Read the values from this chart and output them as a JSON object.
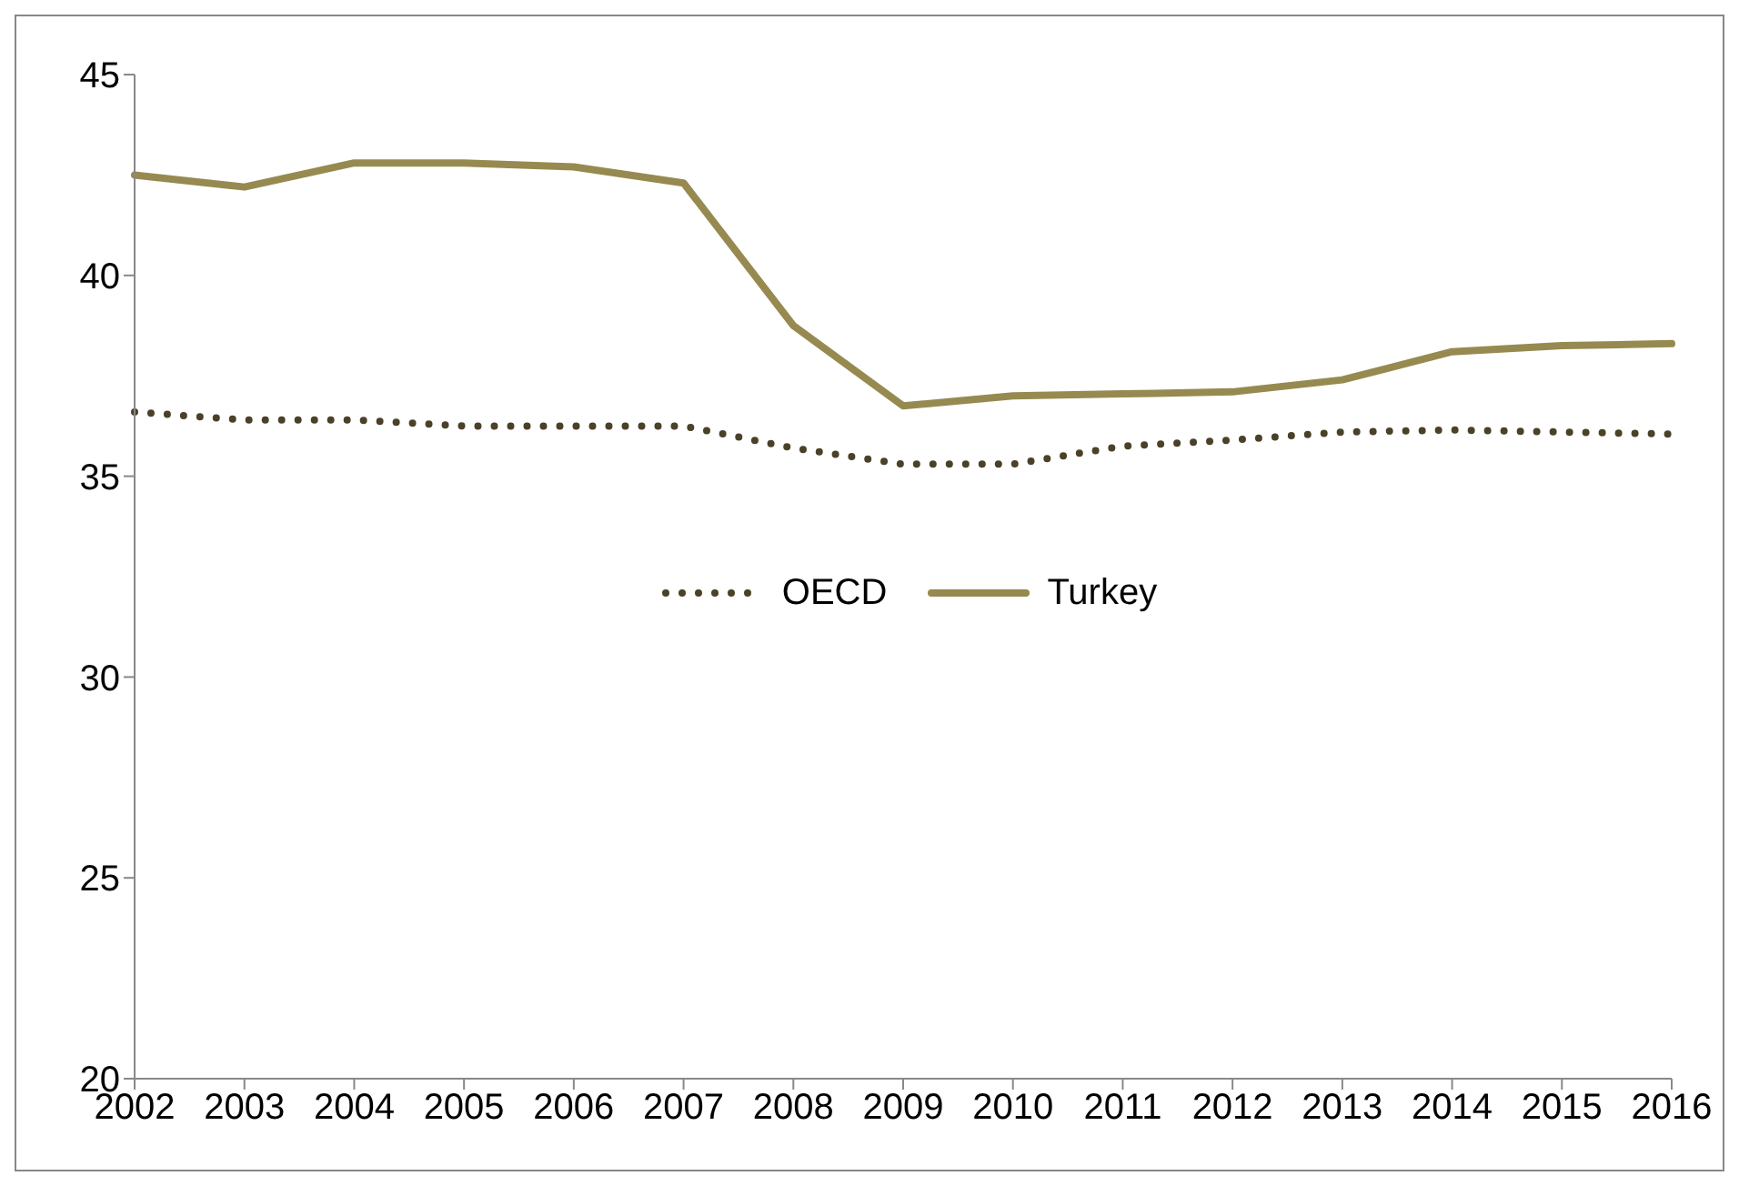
{
  "chart_data": {
    "type": "line",
    "categories": [
      "2002",
      "2003",
      "2004",
      "2005",
      "2006",
      "2007",
      "2008",
      "2009",
      "2010",
      "2011",
      "2012",
      "2013",
      "2014",
      "2015",
      "2016"
    ],
    "series": [
      {
        "name": "OECD",
        "color": "#4a4128",
        "line_style": "dotted",
        "values": [
          36.6,
          36.4,
          36.4,
          36.25,
          36.25,
          36.25,
          35.7,
          35.3,
          35.3,
          35.75,
          35.9,
          36.1,
          36.15,
          36.1,
          36.05
        ]
      },
      {
        "name": "Turkey",
        "color": "#968a50",
        "line_style": "solid",
        "values": [
          42.5,
          42.2,
          42.8,
          42.8,
          42.7,
          42.3,
          38.75,
          36.75,
          37.0,
          37.05,
          37.1,
          37.4,
          38.1,
          38.25,
          38.3
        ]
      }
    ],
    "ylim": [
      20,
      45
    ],
    "yticks": [
      20,
      25,
      30,
      35,
      40,
      45
    ],
    "grid": false,
    "legend": "center",
    "marker": "none"
  }
}
